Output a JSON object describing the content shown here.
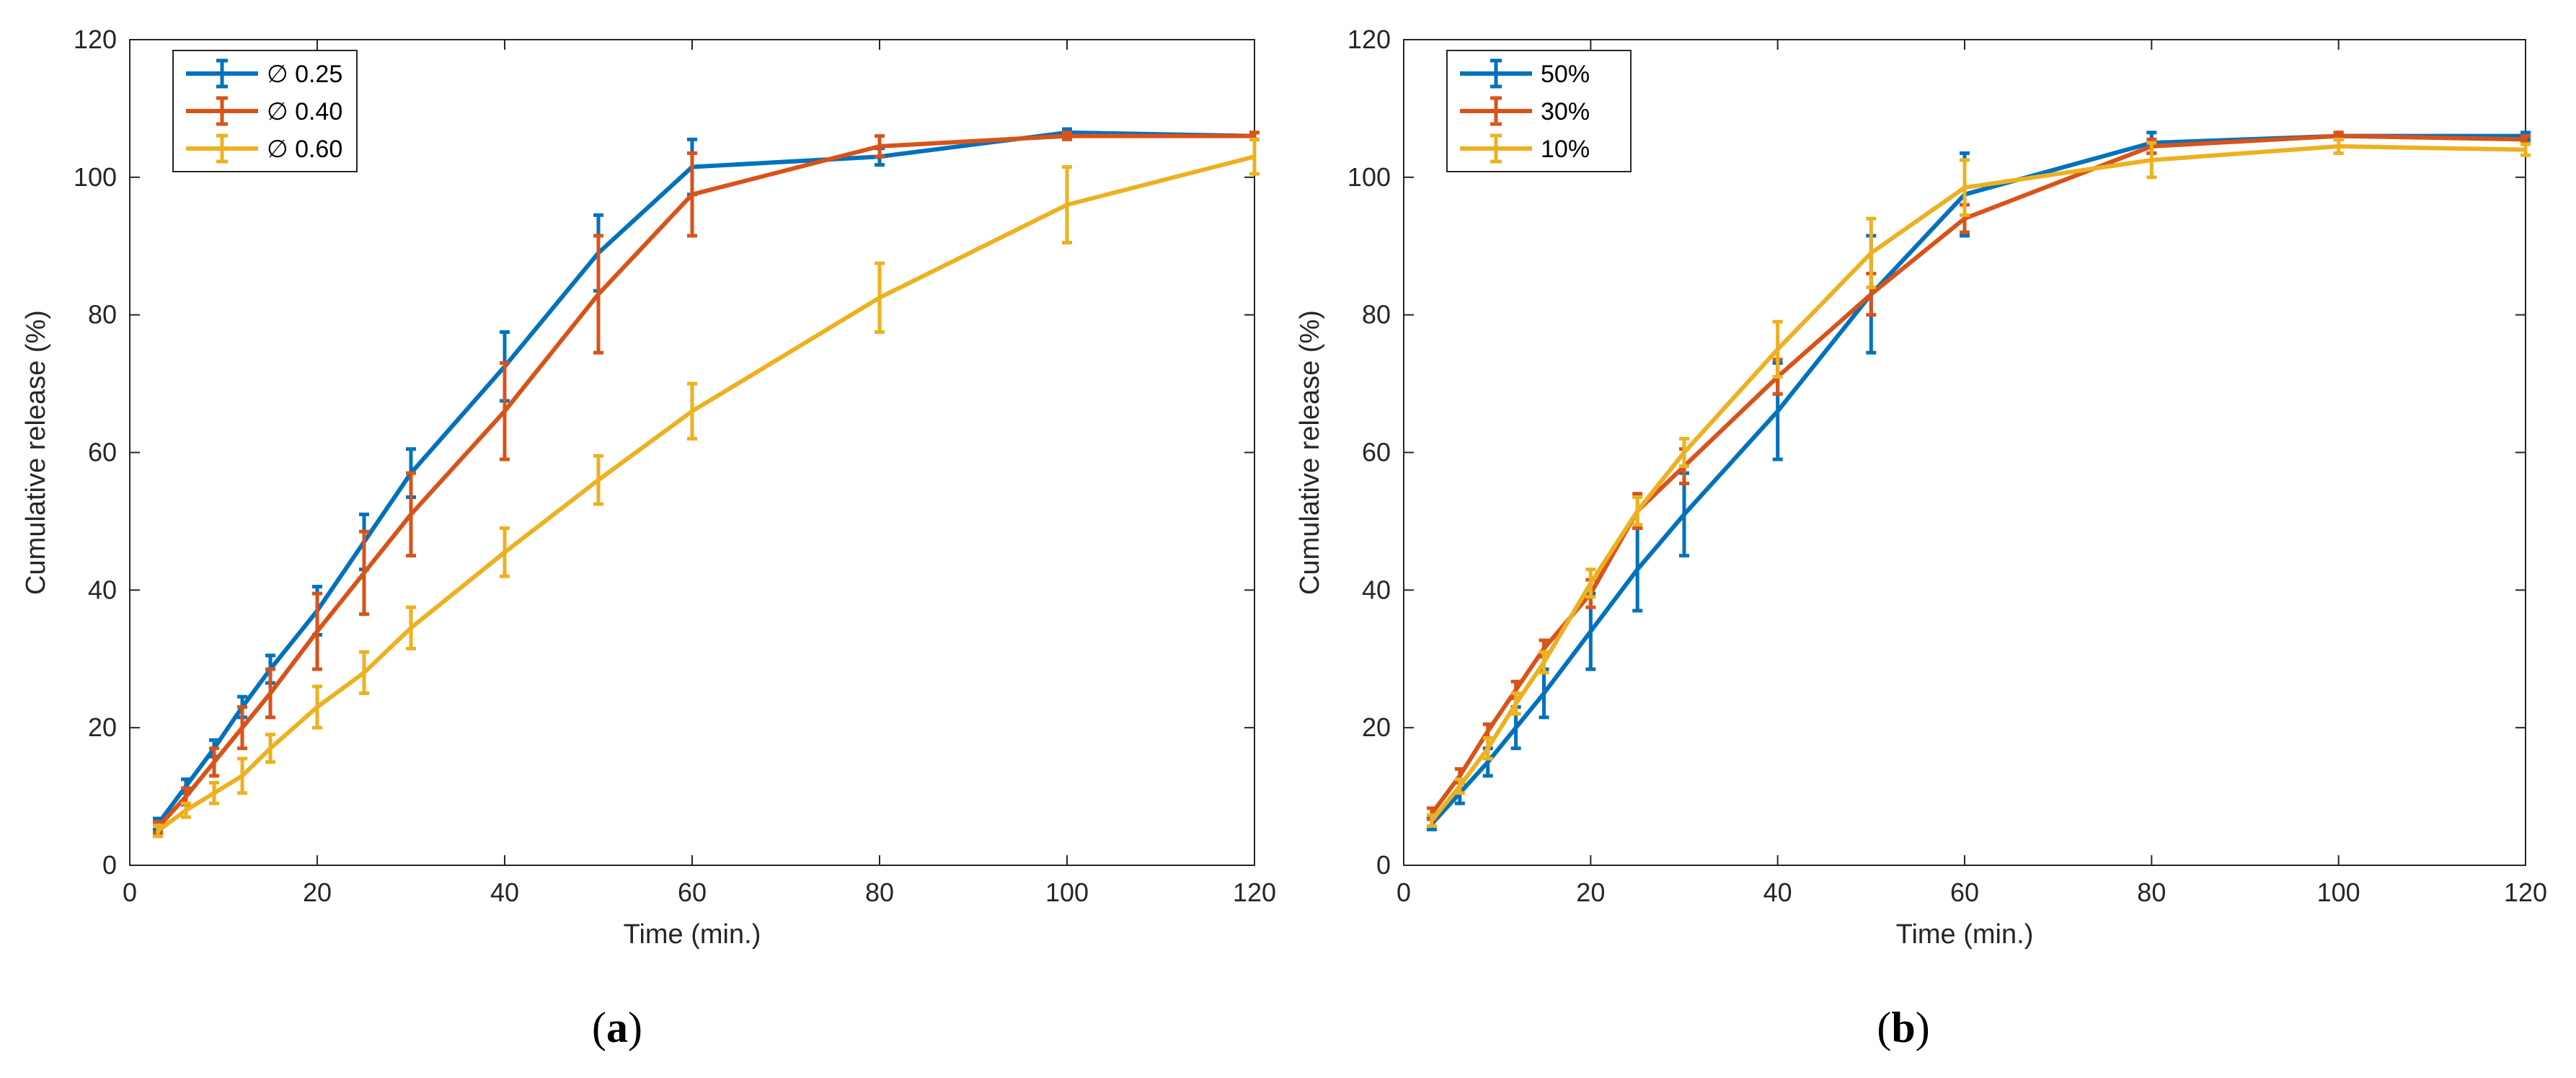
{
  "figure": {
    "panels": [
      {
        "label_open": "(",
        "label_letter": "a",
        "label_close": ")"
      },
      {
        "label_open": "(",
        "label_letter": "b",
        "label_close": ")"
      }
    ]
  },
  "chart_data": [
    {
      "type": "line",
      "title": "",
      "xlabel": "Time (min.)",
      "ylabel": "Cumulative release (%)",
      "xlim": [
        0,
        120
      ],
      "ylim": [
        0,
        120
      ],
      "xticks": [
        0,
        20,
        40,
        60,
        80,
        100,
        120
      ],
      "yticks": [
        0,
        20,
        40,
        60,
        80,
        100,
        120
      ],
      "grid": false,
      "legend_position": "top-left",
      "x": [
        3,
        6,
        9,
        12,
        15,
        20,
        25,
        30,
        40,
        50,
        60,
        80,
        100,
        120
      ],
      "series": [
        {
          "name": "∅ 0.25",
          "color": "#0072BD",
          "values": [
            6,
            11.5,
            17,
            23,
            28.5,
            37,
            47,
            57,
            72.5,
            89,
            101.5,
            103,
            106.5,
            106
          ],
          "errors": [
            0.8,
            1,
            1.2,
            1.5,
            2,
            3.5,
            4,
            3.5,
            5,
            5.5,
            4,
            1.2,
            0.5,
            0.5
          ]
        },
        {
          "name": "∅ 0.40",
          "color": "#D95319",
          "values": [
            5.5,
            10,
            15,
            20,
            25,
            34,
            42.5,
            51,
            66,
            83,
            97.5,
            104.5,
            106,
            106
          ],
          "errors": [
            0.8,
            1.2,
            2,
            3,
            3.5,
            5.5,
            6,
            6,
            7,
            8.5,
            6,
            1.5,
            0.5,
            0.5
          ]
        },
        {
          "name": "∅ 0.60",
          "color": "#EDB120",
          "values": [
            5,
            8,
            10.5,
            13,
            17,
            23,
            28,
            34.5,
            45.5,
            56,
            66,
            82.5,
            96,
            103
          ],
          "errors": [
            0.8,
            1,
            1.5,
            2.5,
            2,
            3,
            3,
            3,
            3.5,
            3.5,
            4,
            5,
            5.5,
            2.5
          ]
        }
      ]
    },
    {
      "type": "line",
      "title": "",
      "xlabel": "Time (min.)",
      "ylabel": "Cumulative release (%)",
      "xlim": [
        0,
        120
      ],
      "ylim": [
        0,
        120
      ],
      "xticks": [
        0,
        20,
        40,
        60,
        80,
        100,
        120
      ],
      "yticks": [
        0,
        20,
        40,
        60,
        80,
        100,
        120
      ],
      "grid": false,
      "legend_position": "top-left",
      "x": [
        3,
        6,
        9,
        12,
        15,
        20,
        25,
        30,
        40,
        50,
        60,
        80,
        100,
        120
      ],
      "series": [
        {
          "name": "50%",
          "color": "#0072BD",
          "values": [
            6,
            10.5,
            15,
            20,
            25,
            34,
            43,
            51,
            66,
            83,
            97.5,
            105,
            106,
            106
          ],
          "errors": [
            0.8,
            1.5,
            2,
            3,
            3.5,
            5.5,
            6,
            6,
            7,
            8.5,
            6,
            1.5,
            0.5,
            0.5
          ]
        },
        {
          "name": "30%",
          "color": "#D95319",
          "values": [
            7.5,
            13,
            19.5,
            25.5,
            31.5,
            39.5,
            51.5,
            58,
            71,
            83,
            94,
            104.5,
            106,
            105.5
          ],
          "errors": [
            0.8,
            1,
            1,
            1.2,
            1.2,
            2,
            2.5,
            2.5,
            2.5,
            3,
            2,
            1,
            0.5,
            0.5
          ]
        },
        {
          "name": "10%",
          "color": "#EDB120",
          "values": [
            6.5,
            11.5,
            17,
            23.5,
            29.5,
            41,
            51.5,
            60,
            75,
            89,
            98.5,
            102.5,
            104.5,
            104
          ],
          "errors": [
            0.8,
            1,
            1.5,
            1.5,
            1.5,
            2,
            2,
            2,
            4,
            5,
            4,
            2.5,
            1,
            0.8
          ]
        }
      ]
    }
  ]
}
